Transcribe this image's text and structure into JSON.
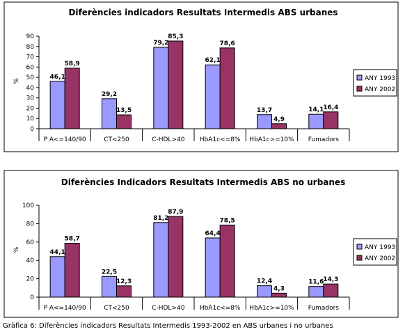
{
  "chart_data": [
    {
      "type": "bar",
      "title": "Diferències indicadors Resultats Intermedis ABS urbanes",
      "ylabel": "%",
      "ylim": [
        0,
        90
      ],
      "yticks": [
        0,
        10,
        20,
        30,
        40,
        50,
        60,
        70,
        80,
        90
      ],
      "grid": false,
      "legend_position": "right",
      "categories": [
        "P A<=140/90",
        "CT<250",
        "C-HDL>40",
        "HbA1c<=8%",
        "HbA1c>=10%",
        "Fumadors"
      ],
      "series": [
        {
          "name": "ANY 1993",
          "color": "#9999ff",
          "values": [
            46.1,
            29.2,
            79.2,
            62.1,
            13.7,
            14.1
          ],
          "labels": [
            "46,1",
            "29,2",
            "79,2",
            "62,1",
            "13,7",
            "14,1"
          ]
        },
        {
          "name": "ANY 2002",
          "color": "#993366",
          "values": [
            58.9,
            13.5,
            85.3,
            78.6,
            4.9,
            16.4
          ],
          "labels": [
            "58,9",
            "13,5",
            "85,3",
            "78,6",
            "4,9",
            "16,4"
          ]
        }
      ]
    },
    {
      "type": "bar",
      "title": "Diferències Indicadors Resultats  Intermedis ABS no urbanes",
      "ylabel": "%",
      "ylim": [
        0,
        100
      ],
      "yticks": [
        0,
        20,
        40,
        60,
        80,
        100
      ],
      "grid": false,
      "legend_position": "right",
      "categories": [
        "P A<=140/90",
        "CT<250",
        "C-HDL>40",
        "HbA1c<=8%",
        "HbA1c>=10%",
        "Fumadors"
      ],
      "series": [
        {
          "name": "ANY 1993",
          "color": "#9999ff",
          "values": [
            44.1,
            22.5,
            81.2,
            64.4,
            12.4,
            11.6
          ],
          "labels": [
            "44,1",
            "22,5",
            "81,2",
            "64,4",
            "12,4",
            "11,6"
          ]
        },
        {
          "name": "ANY 2002",
          "color": "#993366",
          "values": [
            58.7,
            12.3,
            87.9,
            78.5,
            4.3,
            14.3
          ],
          "labels": [
            "58,7",
            "12,3",
            "87,9",
            "78,5",
            "4,3",
            "14,3"
          ]
        }
      ]
    }
  ],
  "caption": "Gràfica 6: Diferències indicadors Resultats Intermedis 1993-2002 en ABS urbanes i no urbanes"
}
